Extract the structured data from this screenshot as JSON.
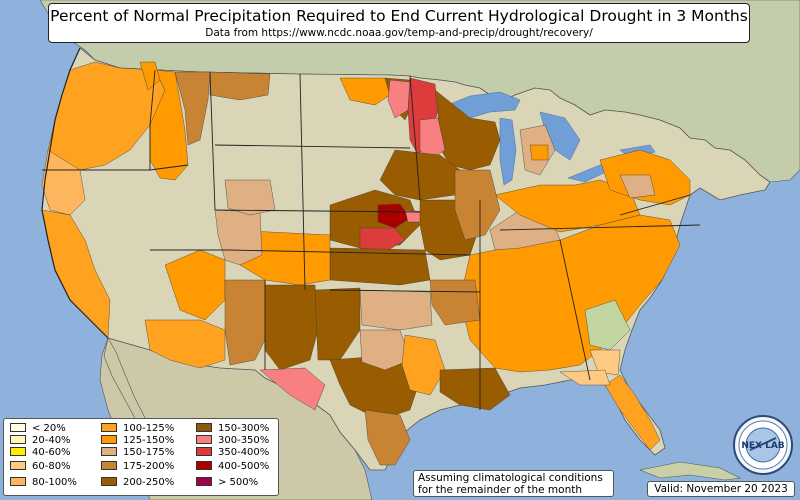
{
  "header": {
    "title": "Percent of Normal Precipitation Required to End Current Hydrological Drought in 3 Months",
    "subtitle": "Data from https://www.ncdc.noaa.gov/temp-and-precip/drought/recovery/"
  },
  "legend": {
    "items": [
      {
        "label": "< 20%",
        "color": "#ffffe5"
      },
      {
        "label": "20-40%",
        "color": "#fff7bc"
      },
      {
        "label": "40-60%",
        "color": "#ffee00"
      },
      {
        "label": "60-80%",
        "color": "#fec980"
      },
      {
        "label": "80-100%",
        "color": "#feb65c"
      },
      {
        "label": "100-125%",
        "color": "#ffa21f"
      },
      {
        "label": "125-150%",
        "color": "#ff9a00"
      },
      {
        "label": "150-175%",
        "color": "#deb083"
      },
      {
        "label": "175-200%",
        "color": "#c98433"
      },
      {
        "label": "200-250%",
        "color": "#9a5c00"
      },
      {
        "label": "150-300%",
        "color": "#8a5a0a"
      },
      {
        "label": "300-350%",
        "color": "#f98080"
      },
      {
        "label": "350-400%",
        "color": "#dc3c3c"
      },
      {
        "label": "400-500%",
        "color": "#aa0000"
      },
      {
        "label": "> 500%",
        "color": "#a0004a"
      }
    ]
  },
  "note": {
    "line1": "Assuming climatological conditions",
    "line2": "for the remainder of the month"
  },
  "valid": {
    "label": "Valid: November 20 2023"
  },
  "logo": {
    "text": "NEX LAB"
  },
  "colors": {
    "ocean": "#8fb2dd",
    "land": "#c9cfa6",
    "mountains": "#b5b3a0",
    "canada": "#c3ccab",
    "mexico": "#cdc8a8",
    "lake": "#6f9fd6",
    "no_drought": "#d9d5b6"
  }
}
